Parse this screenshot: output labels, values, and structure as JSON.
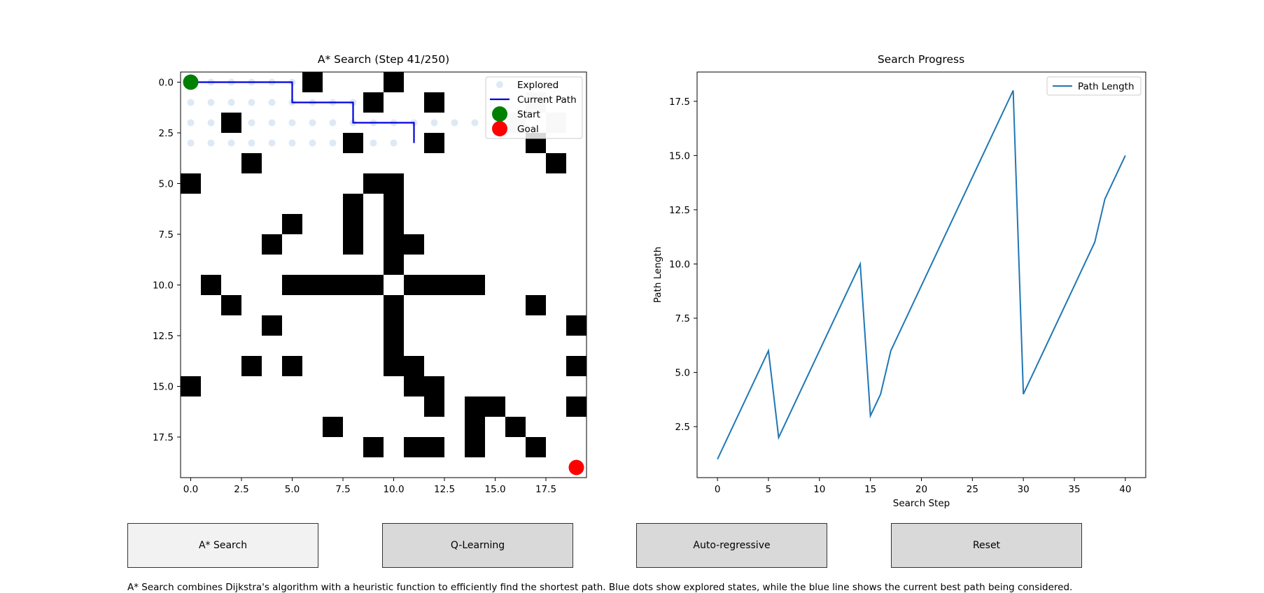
{
  "panel_left": {
    "title": "A* Search (Step 41/250)",
    "legend": {
      "explored": "Explored",
      "current_path": "Current Path",
      "start": "Start",
      "goal": "Goal"
    },
    "x_ticks": [
      "0.0",
      "2.5",
      "5.0",
      "7.5",
      "10.0",
      "12.5",
      "15.0",
      "17.5"
    ],
    "y_ticks": [
      "0.0",
      "2.5",
      "5.0",
      "7.5",
      "10.0",
      "12.5",
      "15.0",
      "17.5"
    ],
    "colors": {
      "wall": "#000000",
      "visited": "#cccccc",
      "explored": "#c6dbef",
      "path": "#0000dd",
      "start": "#008000",
      "goal": "#ff0000"
    }
  },
  "panel_right": {
    "title": "Search Progress",
    "xlabel": "Search Step",
    "ylabel": "Path Length",
    "legend": "Path Length",
    "color": "#1f77b4"
  },
  "buttons": [
    {
      "label": "A* Search",
      "active": true
    },
    {
      "label": "Q-Learning",
      "active": false
    },
    {
      "label": "Auto-regressive",
      "active": false
    },
    {
      "label": "Reset",
      "active": false
    }
  ],
  "description": "A* Search combines Dijkstra's algorithm with a heuristic function to efficiently find the shortest path. Blue dots show explored states, while the blue line shows the current best path being considered.",
  "chart_data": [
    {
      "type": "heatmap",
      "title": "A* Search (Step 41/250)",
      "grid_size": 20,
      "walls": [
        [
          6,
          0
        ],
        [
          10,
          0
        ],
        [
          9,
          1
        ],
        [
          12,
          1
        ],
        [
          2,
          2
        ],
        [
          8,
          3
        ],
        [
          12,
          3
        ],
        [
          17,
          3
        ],
        [
          3,
          4
        ],
        [
          18,
          4
        ],
        [
          0,
          5
        ],
        [
          9,
          5
        ],
        [
          10,
          5
        ],
        [
          8,
          6
        ],
        [
          10,
          6
        ],
        [
          5,
          7
        ],
        [
          8,
          7
        ],
        [
          10,
          7
        ],
        [
          4,
          8
        ],
        [
          8,
          8
        ],
        [
          10,
          8
        ],
        [
          11,
          8
        ],
        [
          10,
          9
        ],
        [
          1,
          10
        ],
        [
          5,
          10
        ],
        [
          6,
          10
        ],
        [
          7,
          10
        ],
        [
          8,
          10
        ],
        [
          9,
          10
        ],
        [
          11,
          10
        ],
        [
          12,
          10
        ],
        [
          13,
          10
        ],
        [
          14,
          10
        ],
        [
          2,
          11
        ],
        [
          10,
          11
        ],
        [
          17,
          11
        ],
        [
          4,
          12
        ],
        [
          10,
          12
        ],
        [
          19,
          12
        ],
        [
          10,
          13
        ],
        [
          3,
          14
        ],
        [
          5,
          14
        ],
        [
          10,
          14
        ],
        [
          11,
          14
        ],
        [
          19,
          14
        ],
        [
          0,
          15
        ],
        [
          11,
          15
        ],
        [
          12,
          15
        ],
        [
          12,
          16
        ],
        [
          14,
          16
        ],
        [
          15,
          16
        ],
        [
          19,
          16
        ],
        [
          7,
          17
        ],
        [
          14,
          17
        ],
        [
          16,
          17
        ],
        [
          9,
          18
        ],
        [
          11,
          18
        ],
        [
          12,
          18
        ],
        [
          14,
          18
        ],
        [
          17,
          18
        ]
      ],
      "visited": [
        [
          17,
          1
        ],
        [
          16,
          2
        ],
        [
          18,
          2
        ]
      ],
      "explored": [
        [
          1,
          0
        ],
        [
          2,
          0
        ],
        [
          3,
          0
        ],
        [
          4,
          0
        ],
        [
          5,
          0
        ],
        [
          0,
          1
        ],
        [
          1,
          1
        ],
        [
          2,
          1
        ],
        [
          3,
          1
        ],
        [
          4,
          1
        ],
        [
          5,
          1
        ],
        [
          6,
          1
        ],
        [
          7,
          1
        ],
        [
          8,
          1
        ],
        [
          0,
          2
        ],
        [
          1,
          2
        ],
        [
          3,
          2
        ],
        [
          4,
          2
        ],
        [
          5,
          2
        ],
        [
          6,
          2
        ],
        [
          7,
          2
        ],
        [
          8,
          2
        ],
        [
          9,
          2
        ],
        [
          10,
          2
        ],
        [
          11,
          2
        ],
        [
          12,
          2
        ],
        [
          13,
          2
        ],
        [
          14,
          2
        ],
        [
          0,
          3
        ],
        [
          1,
          3
        ],
        [
          2,
          3
        ],
        [
          3,
          3
        ],
        [
          4,
          3
        ],
        [
          5,
          3
        ],
        [
          6,
          3
        ],
        [
          7,
          3
        ],
        [
          9,
          3
        ],
        [
          10,
          3
        ]
      ],
      "current_path": [
        [
          0,
          0
        ],
        [
          5,
          0
        ],
        [
          5,
          1
        ],
        [
          8,
          1
        ],
        [
          8,
          2
        ],
        [
          11,
          2
        ],
        [
          11,
          3
        ]
      ],
      "start": [
        0,
        0
      ],
      "goal": [
        19,
        19
      ],
      "xlim": [
        -0.5,
        19.5
      ],
      "ylim": [
        19.5,
        -0.5
      ]
    },
    {
      "type": "line",
      "title": "Search Progress",
      "xlabel": "Search Step",
      "ylabel": "Path Length",
      "series": [
        {
          "name": "Path Length",
          "x": [
            0,
            5,
            6,
            14,
            15,
            16,
            17,
            29,
            30,
            37,
            38,
            40
          ],
          "y": [
            1,
            6,
            2,
            10,
            3,
            4,
            6,
            18,
            4,
            11,
            13,
            15
          ]
        }
      ],
      "x_ticks": [
        0,
        5,
        10,
        15,
        20,
        25,
        30,
        35,
        40
      ],
      "y_ticks": [
        2.5,
        5.0,
        7.5,
        10.0,
        12.5,
        15.0,
        17.5
      ],
      "xlim": [
        -2,
        42
      ],
      "ylim": [
        0.15,
        18.85
      ]
    }
  ]
}
